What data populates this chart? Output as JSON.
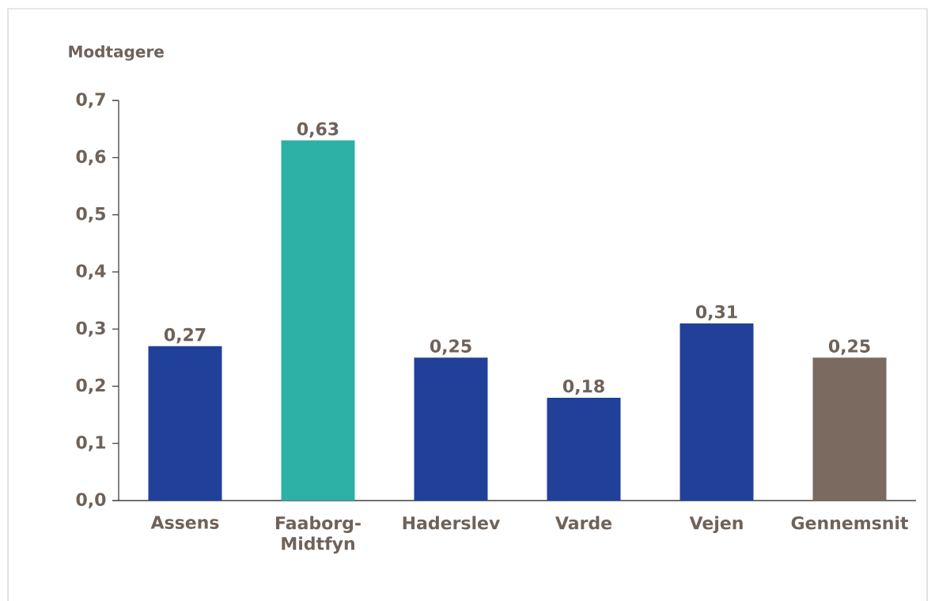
{
  "chart_data": {
    "type": "bar",
    "ylabel": "Modtagere",
    "categories": [
      "Assens",
      "Faaborg-Midtfyn",
      "Haderslev",
      "Varde",
      "Vejen",
      "Gennemsnit"
    ],
    "values": [
      0.27,
      0.63,
      0.25,
      0.18,
      0.31,
      0.25
    ],
    "colors": [
      "#21409a",
      "#2db0a5",
      "#21409a",
      "#21409a",
      "#21409a",
      "#7a6a60"
    ],
    "ylim": [
      0,
      0.7
    ],
    "yticks": [
      {
        "value": 0,
        "label": "0,0"
      },
      {
        "value": 0.1,
        "label": "0,1"
      },
      {
        "value": 0.2,
        "label": "0,2"
      },
      {
        "value": 0.3,
        "label": "0,3"
      },
      {
        "value": 0.4,
        "label": "0,4"
      },
      {
        "value": 0.5,
        "label": "0,5"
      },
      {
        "value": 0.6,
        "label": "0,6"
      },
      {
        "value": 0.7,
        "label": "0,7"
      }
    ],
    "value_labels": [
      "0,27",
      "0,63",
      "0,25",
      "0,18",
      "0,31",
      "0,25"
    ]
  }
}
